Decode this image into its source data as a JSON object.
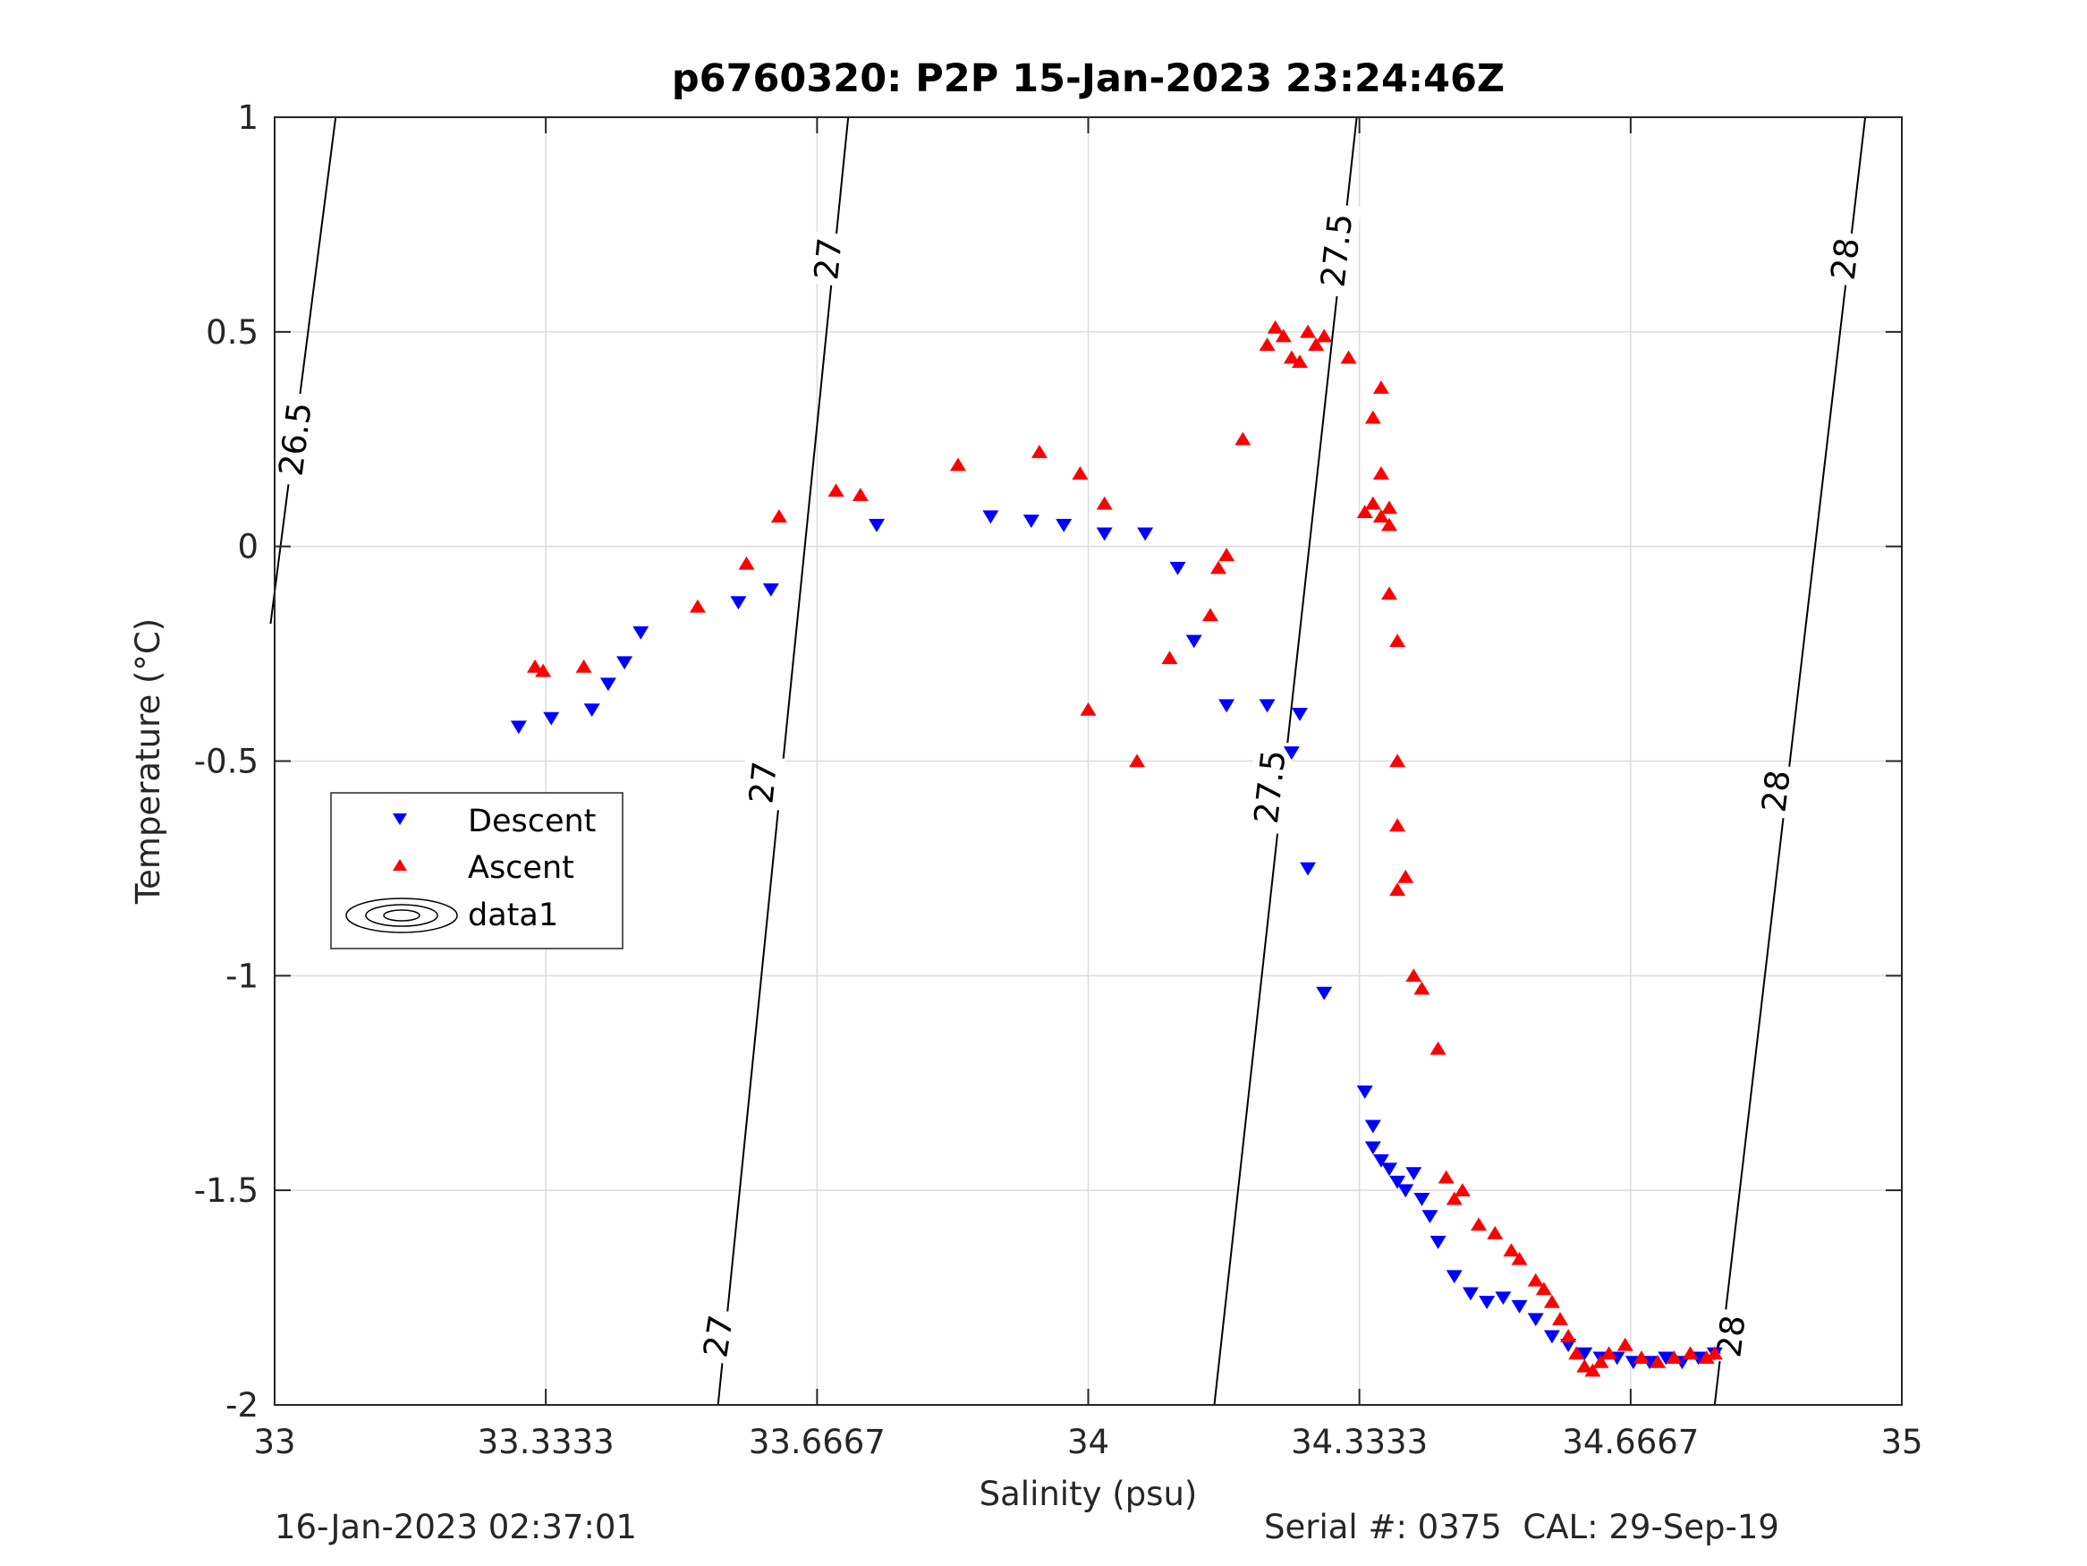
{
  "chart_data": {
    "type": "scatter",
    "title": "p6760320: P2P 15-Jan-2023 23:24:46Z",
    "xlabel": "Salinity (psu)",
    "ylabel": "Temperature (°C)",
    "xlim": [
      33,
      35
    ],
    "ylim": [
      -2,
      1
    ],
    "xticks": [
      33,
      33.3333,
      33.6667,
      34,
      34.3333,
      34.6667,
      35
    ],
    "xtick_labels": [
      "33",
      "33.3333",
      "33.6667",
      "34",
      "34.3333",
      "34.6667",
      "35"
    ],
    "yticks": [
      -2,
      -1.5,
      -1,
      -0.5,
      0,
      0.5,
      1
    ],
    "ytick_labels": [
      "-2",
      "-1.5",
      "-1",
      "-0.5",
      "0",
      "0.5",
      "1"
    ],
    "grid": true,
    "legend_position": "left",
    "series": [
      {
        "name": "Descent",
        "marker": "triangle-down",
        "color": "#0000ff",
        "x": [
          33.3,
          33.34,
          33.39,
          33.41,
          33.43,
          33.45,
          33.57,
          33.61,
          33.74,
          33.88,
          33.93,
          33.97,
          34.02,
          34.07,
          34.11,
          34.13,
          34.17,
          34.22,
          34.25,
          34.26,
          34.27,
          34.29,
          34.34,
          34.35,
          34.35,
          34.36,
          34.37,
          34.38,
          34.39,
          34.4,
          34.41,
          34.42,
          34.43,
          34.45,
          34.47,
          34.49,
          34.51,
          34.53,
          34.55,
          34.57,
          34.59,
          34.61,
          34.63,
          34.65,
          34.67,
          34.69,
          34.71,
          34.73,
          34.75,
          34.77
        ],
        "y": [
          -0.42,
          -0.4,
          -0.38,
          -0.32,
          -0.27,
          -0.2,
          -0.13,
          -0.1,
          0.05,
          0.07,
          0.06,
          0.05,
          0.03,
          0.03,
          -0.05,
          -0.22,
          -0.37,
          -0.37,
          -0.48,
          -0.39,
          -0.75,
          -1.04,
          -1.27,
          -1.35,
          -1.4,
          -1.43,
          -1.45,
          -1.48,
          -1.5,
          -1.46,
          -1.52,
          -1.56,
          -1.62,
          -1.7,
          -1.74,
          -1.76,
          -1.75,
          -1.77,
          -1.8,
          -1.84,
          -1.86,
          -1.88,
          -1.89,
          -1.89,
          -1.9,
          -1.9,
          -1.89,
          -1.9,
          -1.89,
          -1.88
        ]
      },
      {
        "name": "Ascent",
        "marker": "triangle-up",
        "color": "#ff0000",
        "x": [
          33.32,
          33.33,
          33.38,
          33.52,
          33.58,
          33.62,
          33.69,
          33.72,
          33.84,
          33.94,
          33.99,
          34.0,
          34.02,
          34.06,
          34.1,
          34.15,
          34.16,
          34.17,
          34.19,
          34.22,
          34.23,
          34.24,
          34.25,
          34.26,
          34.27,
          34.28,
          34.29,
          34.32,
          34.34,
          34.35,
          34.35,
          34.36,
          34.36,
          34.36,
          34.37,
          34.37,
          34.37,
          34.38,
          34.38,
          34.38,
          34.38,
          34.39,
          34.4,
          34.41,
          34.43,
          34.44,
          34.45,
          34.46,
          34.48,
          34.5,
          34.52,
          34.53,
          34.55,
          34.56,
          34.57,
          34.58,
          34.59,
          34.6,
          34.61,
          34.62,
          34.63,
          34.64,
          34.66,
          34.68,
          34.7,
          34.72,
          34.74,
          34.76,
          34.77
        ],
        "y": [
          -0.28,
          -0.29,
          -0.28,
          -0.14,
          -0.04,
          0.07,
          0.13,
          0.12,
          0.19,
          0.22,
          0.17,
          -0.38,
          0.1,
          -0.5,
          -0.26,
          -0.16,
          -0.05,
          -0.02,
          0.25,
          0.47,
          0.51,
          0.49,
          0.44,
          0.43,
          0.5,
          0.47,
          0.49,
          0.44,
          0.08,
          0.1,
          0.3,
          0.37,
          0.07,
          0.17,
          0.09,
          0.05,
          -0.11,
          -0.22,
          -0.5,
          -0.65,
          -0.8,
          -0.77,
          -1.0,
          -1.03,
          -1.17,
          -1.47,
          -1.52,
          -1.5,
          -1.58,
          -1.6,
          -1.64,
          -1.66,
          -1.71,
          -1.73,
          -1.76,
          -1.8,
          -1.84,
          -1.88,
          -1.91,
          -1.92,
          -1.9,
          -1.88,
          -1.86,
          -1.89,
          -1.9,
          -1.89,
          -1.88,
          -1.89,
          -1.88
        ]
      }
    ],
    "isopycnals": [
      {
        "label": "26.5",
        "line": [
          [
            32.995,
            -0.18
          ],
          [
            33.075,
            1.0
          ]
        ],
        "label_positions": [
          [
            33.025,
            0.25
          ]
        ]
      },
      {
        "label": "27",
        "line": [
          [
            33.545,
            -2.0
          ],
          [
            33.705,
            1.0
          ]
        ],
        "label_positions": [
          [
            33.68,
            0.67
          ],
          [
            33.6,
            -0.55
          ]
        ]
      },
      {
        "label": "27",
        "line": [],
        "label_positions": [
          [
            33.545,
            -1.84
          ]
        ]
      },
      {
        "label": "27.5",
        "line": [
          [
            34.155,
            -2.0
          ],
          [
            34.33,
            1.0
          ]
        ],
        "label_positions": [
          [
            34.305,
            0.69
          ],
          [
            34.223,
            -0.56
          ]
        ]
      },
      {
        "label": "28",
        "line": [
          [
            34.77,
            -2.0
          ],
          [
            34.955,
            1.0
          ]
        ],
        "label_positions": [
          [
            34.93,
            0.67
          ],
          [
            34.845,
            -0.57
          ],
          [
            34.79,
            -1.84
          ]
        ]
      }
    ],
    "legend_entries": [
      "Descent",
      "Ascent",
      "data1"
    ]
  },
  "footer": {
    "timestamp": "16-Jan-2023 02:37:01",
    "serial_cal": "Serial #: 0375  CAL: 29-Sep-19"
  }
}
